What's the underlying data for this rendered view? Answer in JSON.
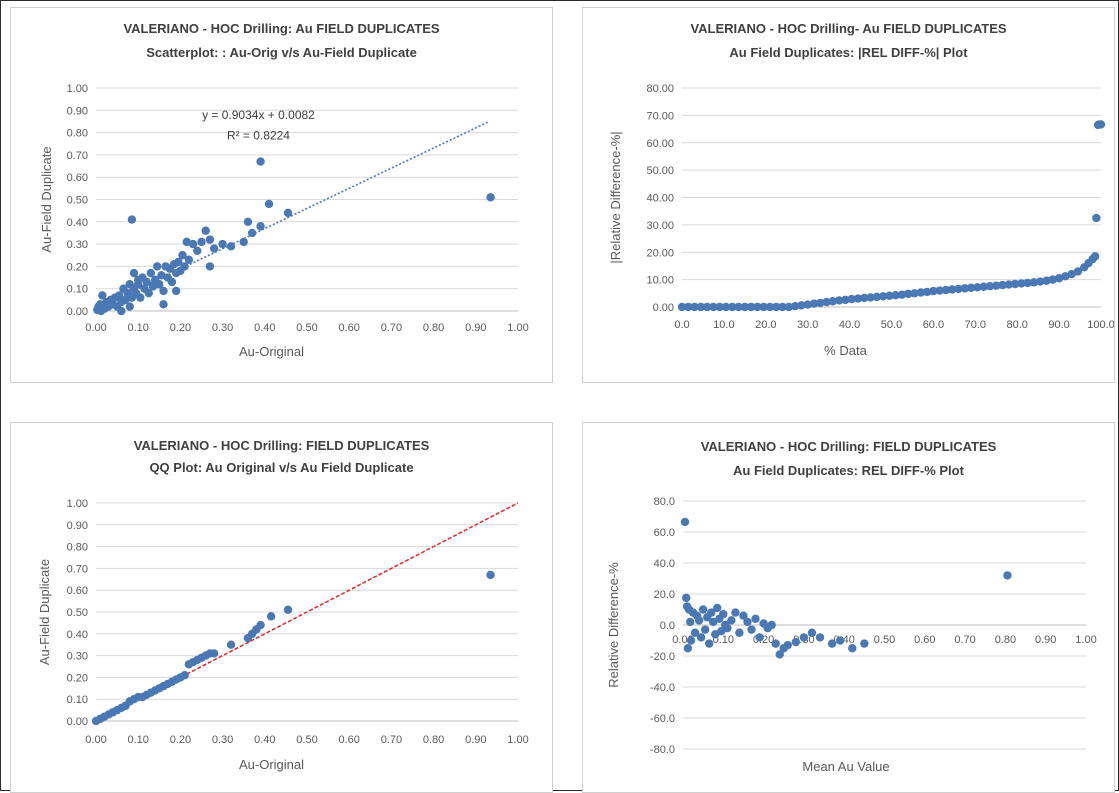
{
  "chart_data": [
    {
      "type": "scatter",
      "title": "VALERIANO - HOC Drilling:  Au FIELD DUPLICATES",
      "subtitle": "Scatterplot: : Au-Orig v/s Au-Field Duplicate",
      "xlabel": "Au-Original",
      "ylabel": "Au-Field Duplicate",
      "xlim": [
        0,
        1
      ],
      "ylim": [
        0,
        1
      ],
      "x_ticks": [
        "0.00",
        "0.10",
        "0.20",
        "0.30",
        "0.40",
        "0.50",
        "0.60",
        "0.70",
        "0.80",
        "0.90",
        "1.00"
      ],
      "y_ticks": [
        "0.00",
        "0.10",
        "0.20",
        "0.30",
        "0.40",
        "0.50",
        "0.60",
        "0.70",
        "0.80",
        "0.90",
        "1.00"
      ],
      "grid": true,
      "series": [
        {
          "points": [
            [
              0.003,
              0.005
            ],
            [
              0.006,
              0.02
            ],
            [
              0.01,
              0.03
            ],
            [
              0.012,
              0.0
            ],
            [
              0.015,
              0.07
            ],
            [
              0.02,
              0.01
            ],
            [
              0.025,
              0.04
            ],
            [
              0.03,
              0.02
            ],
            [
              0.035,
              0.05
            ],
            [
              0.04,
              0.03
            ],
            [
              0.045,
              0.06
            ],
            [
              0.05,
              0.02
            ],
            [
              0.055,
              0.07
            ],
            [
              0.06,
              0.04
            ],
            [
              0.065,
              0.1
            ],
            [
              0.07,
              0.05
            ],
            [
              0.075,
              0.08
            ],
            [
              0.08,
              0.12
            ],
            [
              0.085,
              0.06
            ],
            [
              0.09,
              0.1
            ],
            [
              0.095,
              0.08
            ],
            [
              0.1,
              0.12
            ],
            [
              0.105,
              0.06
            ],
            [
              0.11,
              0.15
            ],
            [
              0.115,
              0.1
            ],
            [
              0.12,
              0.13
            ],
            [
              0.125,
              0.08
            ],
            [
              0.13,
              0.17
            ],
            [
              0.135,
              0.11
            ],
            [
              0.14,
              0.14
            ],
            [
              0.145,
              0.2
            ],
            [
              0.15,
              0.12
            ],
            [
              0.155,
              0.16
            ],
            [
              0.16,
              0.09
            ],
            [
              0.165,
              0.2
            ],
            [
              0.17,
              0.15
            ],
            [
              0.175,
              0.19
            ],
            [
              0.18,
              0.13
            ],
            [
              0.185,
              0.21
            ],
            [
              0.19,
              0.17
            ],
            [
              0.195,
              0.22
            ],
            [
              0.2,
              0.18
            ],
            [
              0.205,
              0.25
            ],
            [
              0.21,
              0.2
            ],
            [
              0.215,
              0.31
            ],
            [
              0.22,
              0.23
            ],
            [
              0.23,
              0.3
            ],
            [
              0.24,
              0.27
            ],
            [
              0.25,
              0.31
            ],
            [
              0.26,
              0.36
            ],
            [
              0.27,
              0.32
            ],
            [
              0.28,
              0.28
            ],
            [
              0.3,
              0.3
            ],
            [
              0.32,
              0.29
            ],
            [
              0.35,
              0.31
            ],
            [
              0.36,
              0.4
            ],
            [
              0.37,
              0.35
            ],
            [
              0.39,
              0.38
            ],
            [
              0.085,
              0.41
            ],
            [
              0.39,
              0.67
            ],
            [
              0.41,
              0.48
            ],
            [
              0.455,
              0.44
            ],
            [
              0.935,
              0.51
            ],
            [
              0.16,
              0.03
            ],
            [
              0.19,
              0.09
            ],
            [
              0.27,
              0.2
            ],
            [
              0.09,
              0.17
            ],
            [
              0.1,
              0.14
            ],
            [
              0.06,
              0.0
            ],
            [
              0.08,
              0.02
            ]
          ]
        }
      ],
      "trendline": {
        "slope": 0.9034,
        "intercept": 0.0082,
        "x_range": [
          0,
          0.93
        ],
        "equation_label": "y = 0.9034x + 0.0082",
        "r2_label": "R² = 0.8224"
      },
      "colors": {
        "points": "#4a78b5",
        "trendline": "#4a78b5"
      }
    },
    {
      "type": "scatter",
      "title": "VALERIANO - HOC Drilling- Au FIELD DUPLICATES",
      "subtitle": "Au Field Duplicates: |REL DIFF-%| Plot",
      "xlabel": "% Data",
      "ylabel": "|Relative Difference-%|",
      "xlim": [
        0,
        100
      ],
      "ylim": [
        0,
        80
      ],
      "x_ticks": [
        "0.0",
        "10.0",
        "20.0",
        "30.0",
        "40.0",
        "50.0",
        "60.0",
        "70.0",
        "80.0",
        "90.0",
        "100.0"
      ],
      "y_ticks": [
        "0.00",
        "10.00",
        "20.00",
        "30.00",
        "40.00",
        "50.00",
        "60.00",
        "70.00",
        "80.00"
      ],
      "grid": true,
      "series": [
        {
          "points": [
            [
              0,
              0
            ],
            [
              1.5,
              0
            ],
            [
              3,
              0
            ],
            [
              4.5,
              0
            ],
            [
              6,
              0
            ],
            [
              7.5,
              0
            ],
            [
              9,
              0
            ],
            [
              10.5,
              0
            ],
            [
              12,
              0
            ],
            [
              13.5,
              0
            ],
            [
              15,
              0
            ],
            [
              16.5,
              0
            ],
            [
              18,
              0
            ],
            [
              19.5,
              0
            ],
            [
              21,
              0
            ],
            [
              22.5,
              0
            ],
            [
              24,
              0
            ],
            [
              25.5,
              0
            ],
            [
              27,
              0.3
            ],
            [
              28.5,
              0.6
            ],
            [
              30,
              0.9
            ],
            [
              31.5,
              1.2
            ],
            [
              33,
              1.5
            ],
            [
              34.5,
              1.8
            ],
            [
              36,
              2.1
            ],
            [
              37.5,
              2.4
            ],
            [
              39,
              2.6
            ],
            [
              40.5,
              2.9
            ],
            [
              42,
              3.1
            ],
            [
              43.5,
              3.3
            ],
            [
              45,
              3.5
            ],
            [
              46.5,
              3.7
            ],
            [
              48,
              3.9
            ],
            [
              49.5,
              4.1
            ],
            [
              51,
              4.3
            ],
            [
              52.5,
              4.5
            ],
            [
              54,
              4.8
            ],
            [
              55.5,
              5.0
            ],
            [
              57,
              5.3
            ],
            [
              58.5,
              5.5
            ],
            [
              60,
              5.8
            ],
            [
              61.5,
              6.0
            ],
            [
              63,
              6.2
            ],
            [
              64.5,
              6.4
            ],
            [
              66,
              6.6
            ],
            [
              67.5,
              6.8
            ],
            [
              69,
              7.0
            ],
            [
              70.5,
              7.2
            ],
            [
              72,
              7.4
            ],
            [
              73.5,
              7.6
            ],
            [
              75,
              7.8
            ],
            [
              76.5,
              8.0
            ],
            [
              78,
              8.2
            ],
            [
              79.5,
              8.4
            ],
            [
              81,
              8.6
            ],
            [
              82.5,
              8.8
            ],
            [
              84,
              9.0
            ],
            [
              85.5,
              9.3
            ],
            [
              87,
              9.6
            ],
            [
              88.5,
              10.0
            ],
            [
              90,
              10.5
            ],
            [
              91.5,
              11.2
            ],
            [
              93,
              12.0
            ],
            [
              94.5,
              13.0
            ],
            [
              96,
              14.5
            ],
            [
              97,
              16.0
            ],
            [
              98,
              17.5
            ],
            [
              98.6,
              18.5
            ],
            [
              98.9,
              32.5
            ],
            [
              99.3,
              66.5
            ],
            [
              99.6,
              66.7
            ],
            [
              100,
              66.7
            ]
          ]
        }
      ],
      "colors": {
        "points": "#4a78b5"
      }
    },
    {
      "type": "scatter",
      "title": "VALERIANO - HOC Drilling:  FIELD DUPLICATES",
      "subtitle": "QQ Plot: Au Original v/s Au Field Duplicate",
      "xlabel": "Au-Original",
      "ylabel": "Au-Field Duplicate",
      "xlim": [
        0,
        1
      ],
      "ylim": [
        0,
        1
      ],
      "x_ticks": [
        "0.00",
        "0.10",
        "0.20",
        "0.30",
        "0.40",
        "0.50",
        "0.60",
        "0.70",
        "0.80",
        "0.90",
        "1.00"
      ],
      "y_ticks": [
        "0.00",
        "0.10",
        "0.20",
        "0.30",
        "0.40",
        "0.50",
        "0.60",
        "0.70",
        "0.80",
        "0.90",
        "1.00"
      ],
      "grid": true,
      "series": [
        {
          "points": [
            [
              0.0,
              0.0
            ],
            [
              0.01,
              0.01
            ],
            [
              0.02,
              0.02
            ],
            [
              0.03,
              0.03
            ],
            [
              0.04,
              0.04
            ],
            [
              0.05,
              0.05
            ],
            [
              0.06,
              0.06
            ],
            [
              0.07,
              0.07
            ],
            [
              0.08,
              0.09
            ],
            [
              0.09,
              0.1
            ],
            [
              0.1,
              0.11
            ],
            [
              0.11,
              0.11
            ],
            [
              0.12,
              0.12
            ],
            [
              0.13,
              0.13
            ],
            [
              0.14,
              0.14
            ],
            [
              0.15,
              0.15
            ],
            [
              0.16,
              0.16
            ],
            [
              0.17,
              0.17
            ],
            [
              0.18,
              0.18
            ],
            [
              0.19,
              0.19
            ],
            [
              0.2,
              0.2
            ],
            [
              0.21,
              0.21
            ],
            [
              0.22,
              0.26
            ],
            [
              0.23,
              0.27
            ],
            [
              0.24,
              0.28
            ],
            [
              0.25,
              0.29
            ],
            [
              0.26,
              0.3
            ],
            [
              0.27,
              0.31
            ],
            [
              0.28,
              0.31
            ],
            [
              0.32,
              0.35
            ],
            [
              0.36,
              0.38
            ],
            [
              0.37,
              0.4
            ],
            [
              0.38,
              0.42
            ],
            [
              0.39,
              0.44
            ],
            [
              0.415,
              0.48
            ],
            [
              0.455,
              0.51
            ],
            [
              0.935,
              0.67
            ]
          ]
        }
      ],
      "reference_line": {
        "from": [
          0,
          0
        ],
        "to": [
          1,
          1
        ]
      },
      "colors": {
        "points": "#4a78b5",
        "reference_line": "#e0262b"
      }
    },
    {
      "type": "scatter",
      "title": "VALERIANO - HOC Drilling:  FIELD DUPLICATES",
      "subtitle": "Au Field Duplicates: REL DIFF-% Plot",
      "xlabel": "Mean Au Value",
      "ylabel": "Relative Difference-%",
      "xlim": [
        0,
        1
      ],
      "ylim": [
        -80,
        80
      ],
      "x_ticks": [
        "0.00",
        "0.10",
        "0.20",
        "0.30",
        "0.40",
        "0.50",
        "0.60",
        "0.70",
        "0.80",
        "0.90",
        "1.00"
      ],
      "y_ticks": [
        "-80.0",
        "-60.0",
        "-40.0",
        "-20.0",
        "0.0",
        "20.0",
        "40.0",
        "60.0",
        "80.0"
      ],
      "grid": true,
      "series": [
        {
          "points": [
            [
              0.005,
              66.5
            ],
            [
              0.008,
              17.5
            ],
            [
              0.01,
              12
            ],
            [
              0.012,
              -15
            ],
            [
              0.015,
              10
            ],
            [
              0.018,
              2
            ],
            [
              0.02,
              -10
            ],
            [
              0.025,
              8
            ],
            [
              0.03,
              -5
            ],
            [
              0.035,
              6
            ],
            [
              0.04,
              3
            ],
            [
              0.045,
              -8
            ],
            [
              0.05,
              10
            ],
            [
              0.055,
              -3
            ],
            [
              0.06,
              5
            ],
            [
              0.065,
              -12
            ],
            [
              0.07,
              8
            ],
            [
              0.075,
              2
            ],
            [
              0.08,
              -6
            ],
            [
              0.085,
              11
            ],
            [
              0.09,
              4
            ],
            [
              0.095,
              -4
            ],
            [
              0.1,
              7
            ],
            [
              0.105,
              0
            ],
            [
              0.11,
              -2
            ],
            [
              0.12,
              3
            ],
            [
              0.13,
              8
            ],
            [
              0.14,
              -5
            ],
            [
              0.15,
              6
            ],
            [
              0.16,
              2
            ],
            [
              0.17,
              -3
            ],
            [
              0.18,
              4
            ],
            [
              0.19,
              -8
            ],
            [
              0.2,
              1
            ],
            [
              0.21,
              -2
            ],
            [
              0.22,
              0
            ],
            [
              0.23,
              -12
            ],
            [
              0.24,
              -19
            ],
            [
              0.25,
              -15
            ],
            [
              0.26,
              -13
            ],
            [
              0.28,
              -11
            ],
            [
              0.3,
              -8
            ],
            [
              0.32,
              -5
            ],
            [
              0.34,
              -8
            ],
            [
              0.37,
              -12
            ],
            [
              0.39,
              -10
            ],
            [
              0.42,
              -15
            ],
            [
              0.45,
              -12
            ],
            [
              0.805,
              32
            ]
          ]
        }
      ],
      "colors": {
        "points": "#4a78b5"
      }
    }
  ]
}
